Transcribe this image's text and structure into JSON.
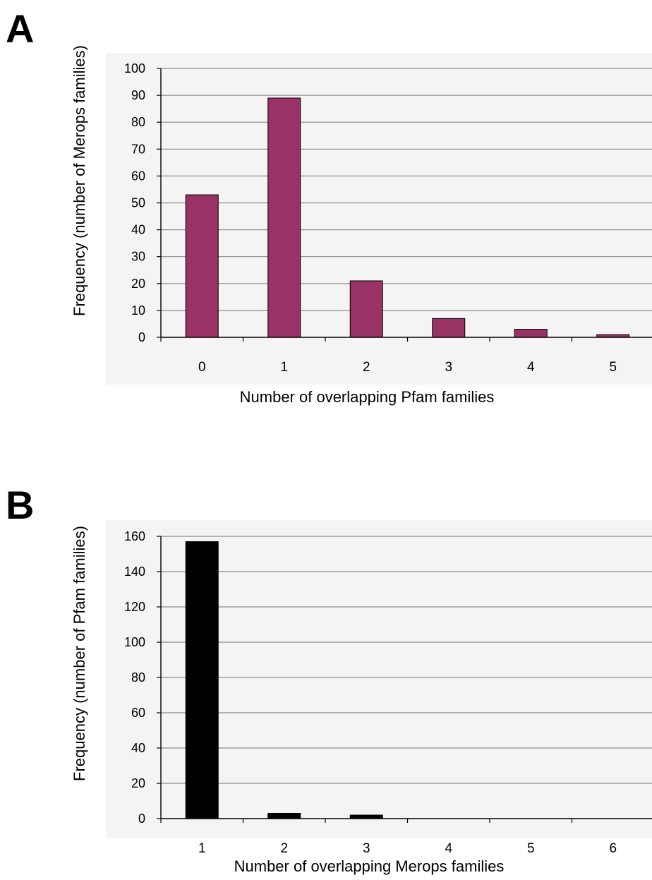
{
  "panels": [
    {
      "letter": "A"
    },
    {
      "letter": "B"
    }
  ],
  "chart_data": [
    {
      "type": "bar",
      "panel": "A",
      "categories": [
        "0",
        "1",
        "2",
        "3",
        "4",
        "5"
      ],
      "values": [
        53,
        89,
        21,
        7,
        3,
        1
      ],
      "xlabel": "Number of overlapping Pfam families",
      "ylabel": "Frequency (number of Merops families)",
      "ylim": [
        0,
        100
      ],
      "yticks": [
        0,
        10,
        20,
        30,
        40,
        50,
        60,
        70,
        80,
        90,
        100
      ],
      "grid": true,
      "legend": "none",
      "bar_color": "#993366",
      "plot_background": "#f4f4f4"
    },
    {
      "type": "bar",
      "panel": "B",
      "categories": [
        "1",
        "2",
        "3",
        "4",
        "5",
        "6"
      ],
      "values": [
        157,
        3,
        2,
        0,
        0,
        0
      ],
      "xlabel": "Number of overlapping Merops families",
      "ylabel": "Frequency (number of Pfam families)",
      "ylim": [
        0,
        160
      ],
      "yticks": [
        0,
        20,
        40,
        60,
        80,
        100,
        120,
        140,
        160
      ],
      "grid": true,
      "legend": "none",
      "bar_color": "#000000",
      "plot_background": "#f4f4f4"
    }
  ]
}
